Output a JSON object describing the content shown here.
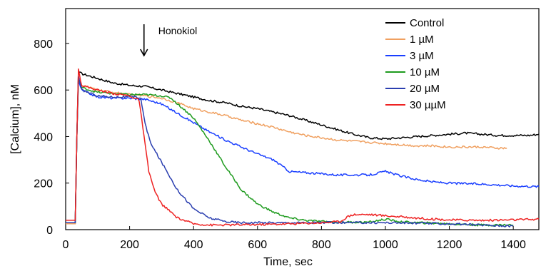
{
  "chart_data": {
    "type": "line",
    "title": "",
    "xlabel": "Time, sec",
    "ylabel": "[Calcium], nM",
    "xlim": [
      0,
      1480
    ],
    "ylim": [
      0,
      950
    ],
    "xticks": [
      0,
      200,
      400,
      600,
      800,
      1000,
      1200,
      1400
    ],
    "yticks": [
      0,
      200,
      400,
      600,
      800
    ],
    "grid": false,
    "legend_position": "top-right",
    "annotations": [
      {
        "text": "Honokiol",
        "x": 245,
        "y": 800,
        "arrow": "down"
      }
    ],
    "series": [
      {
        "name": "Control",
        "color": "#000000",
        "x": [
          0,
          30,
          35,
          40,
          50,
          100,
          150,
          200,
          250,
          300,
          350,
          400,
          450,
          500,
          550,
          600,
          650,
          700,
          750,
          800,
          850,
          900,
          950,
          1000,
          1050,
          1100,
          1150,
          1200,
          1250,
          1300,
          1350,
          1400,
          1450,
          1480
        ],
        "y": [
          25,
          25,
          400,
          680,
          670,
          650,
          630,
          620,
          615,
          600,
          585,
          570,
          555,
          545,
          530,
          520,
          505,
          490,
          470,
          450,
          430,
          410,
          395,
          390,
          395,
          400,
          405,
          410,
          415,
          410,
          405,
          405,
          405,
          410
        ]
      },
      {
        "name": "1 µM",
        "color": "#f0a060",
        "x": [
          0,
          30,
          35,
          40,
          50,
          100,
          150,
          200,
          250,
          300,
          350,
          400,
          450,
          500,
          550,
          600,
          650,
          700,
          750,
          800,
          850,
          900,
          950,
          1000,
          1050,
          1100,
          1150,
          1200,
          1250,
          1300,
          1350,
          1380
        ],
        "y": [
          25,
          25,
          400,
          640,
          620,
          600,
          590,
          580,
          575,
          565,
          545,
          520,
          505,
          490,
          470,
          455,
          440,
          420,
          405,
          395,
          385,
          380,
          375,
          370,
          365,
          360,
          360,
          355,
          355,
          355,
          350,
          350
        ]
      },
      {
        "name": "3 µM",
        "color": "#1a3fff",
        "x": [
          0,
          30,
          35,
          40,
          50,
          100,
          150,
          200,
          250,
          300,
          350,
          400,
          450,
          500,
          550,
          600,
          650,
          680,
          700,
          750,
          800,
          850,
          900,
          950,
          1000,
          1050,
          1100,
          1150,
          1200,
          1250,
          1300,
          1350,
          1400,
          1450,
          1480
        ],
        "y": [
          30,
          30,
          400,
          640,
          600,
          570,
          565,
          565,
          560,
          540,
          500,
          460,
          420,
          385,
          355,
          325,
          300,
          270,
          250,
          245,
          240,
          235,
          235,
          235,
          250,
          230,
          215,
          205,
          200,
          198,
          196,
          192,
          188,
          186,
          185
        ]
      },
      {
        "name": "10 µM",
        "color": "#1e9b1e",
        "x": [
          0,
          30,
          35,
          40,
          50,
          100,
          150,
          200,
          250,
          300,
          330,
          350,
          380,
          400,
          450,
          500,
          550,
          600,
          650,
          700,
          750,
          800,
          850,
          900,
          950,
          1000,
          1050,
          1100,
          1150,
          1200,
          1250,
          1300,
          1350,
          1400
        ],
        "y": [
          30,
          30,
          400,
          650,
          610,
          590,
          585,
          580,
          580,
          575,
          565,
          540,
          505,
          480,
          380,
          270,
          170,
          110,
          75,
          50,
          40,
          35,
          32,
          32,
          32,
          45,
          33,
          30,
          28,
          25,
          22,
          20,
          20,
          20
        ]
      },
      {
        "name": "20 µM",
        "color": "#2b3fb0",
        "x": [
          0,
          30,
          35,
          40,
          50,
          100,
          150,
          200,
          220,
          235,
          245,
          255,
          270,
          300,
          350,
          400,
          450,
          500,
          550,
          600,
          700,
          800,
          900,
          1000,
          1100,
          1200,
          1300,
          1400
        ],
        "y": [
          30,
          30,
          400,
          660,
          600,
          575,
          570,
          570,
          570,
          565,
          480,
          420,
          360,
          290,
          170,
          90,
          50,
          35,
          30,
          30,
          30,
          30,
          30,
          30,
          28,
          25,
          20,
          15
        ]
      },
      {
        "name": "30 µµM",
        "color": "#ee2222",
        "x": [
          0,
          30,
          35,
          40,
          50,
          100,
          150,
          200,
          230,
          245,
          260,
          280,
          300,
          350,
          400,
          450,
          500,
          600,
          700,
          800,
          860,
          880,
          900,
          950,
          1000,
          1050,
          1100,
          1150,
          1200,
          1300,
          1400,
          1480
        ],
        "y": [
          40,
          40,
          400,
          690,
          620,
          600,
          585,
          575,
          555,
          400,
          250,
          160,
          110,
          50,
          25,
          20,
          20,
          22,
          25,
          30,
          35,
          55,
          65,
          65,
          60,
          55,
          50,
          45,
          42,
          40,
          42,
          45
        ]
      }
    ]
  }
}
